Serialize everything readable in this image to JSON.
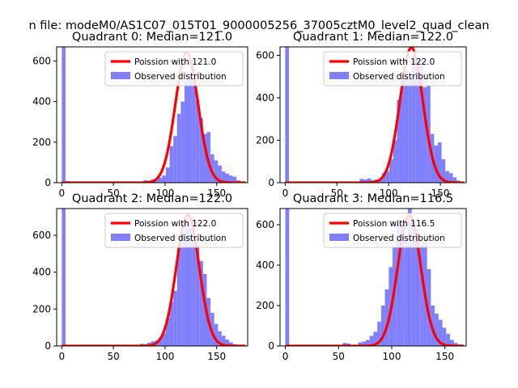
{
  "figure": {
    "suptitle": "n file: modeM0/AS1C07_015T01_9000005256_37005cztM0_level2_quad_clean"
  },
  "chart_data": [
    {
      "type": "histogram",
      "title": "Quadrant 0: Median=121.0",
      "xlim": [
        -5,
        180
      ],
      "ylim": [
        0,
        670
      ],
      "xticks": [
        0,
        50,
        100,
        150
      ],
      "yticks": [
        0,
        200,
        400,
        600
      ],
      "legend_position": "upper right",
      "series": [
        {
          "name": "Poission with 121.0",
          "kind": "line",
          "color": "#ff0000",
          "mean": 121.0,
          "peak": 641
        },
        {
          "name": "Observed distribution",
          "kind": "bar",
          "color": "#8080ff",
          "bin_width": 3.6,
          "bins": [
            0,
            3.6,
            79.2,
            82.8,
            86.4,
            90,
            93.6,
            97.2,
            100.8,
            104.4,
            108,
            111.6,
            115.2,
            118.8,
            122.4,
            126,
            129.6,
            133.2,
            136.8,
            140.4,
            144,
            147.6,
            151.2,
            154.8,
            158.4,
            162,
            165.6,
            169.2,
            172.8
          ],
          "values": [
            700,
            8,
            12,
            10,
            14,
            20,
            25,
            35,
            75,
            180,
            230,
            340,
            400,
            490,
            530,
            560,
            410,
            320,
            240,
            250,
            140,
            110,
            85,
            55,
            45,
            35,
            30,
            12,
            5
          ]
        }
      ]
    },
    {
      "type": "histogram",
      "title": "Quadrant 1: Median=122.0",
      "xlim": [
        -5,
        175
      ],
      "ylim": [
        0,
        640
      ],
      "xticks": [
        0,
        50,
        100,
        150
      ],
      "yticks": [
        0,
        200,
        400,
        600
      ],
      "legend_position": "upper right",
      "series": [
        {
          "name": "Poission with 122.0",
          "kind": "line",
          "color": "#ff0000",
          "mean": 122.0,
          "peak": 637
        },
        {
          "name": "Observed distribution",
          "kind": "bar",
          "color": "#8080ff",
          "bin_width": 3.6,
          "bins": [
            0,
            3.6,
            72,
            75.6,
            79.2,
            82.8,
            86.4,
            90,
            93.6,
            97.2,
            100.8,
            104.4,
            108,
            111.6,
            115.2,
            118.8,
            122.4,
            126,
            129.6,
            133.2,
            136.8,
            140.4,
            144,
            147.6,
            151.2,
            154.8,
            158.4,
            162,
            165.6
          ],
          "values": [
            660,
            6,
            18,
            15,
            20,
            12,
            15,
            18,
            45,
            55,
            110,
            200,
            390,
            470,
            530,
            490,
            600,
            580,
            590,
            450,
            460,
            230,
            175,
            190,
            110,
            55,
            45,
            25,
            10
          ]
        }
      ]
    },
    {
      "type": "histogram",
      "title": "Quadrant 2: Median=122.0",
      "xlim": [
        -5,
        180
      ],
      "ylim": [
        0,
        745
      ],
      "xticks": [
        0,
        50,
        100,
        150
      ],
      "yticks": [
        0,
        200,
        400,
        600
      ],
      "legend_position": "upper right",
      "series": [
        {
          "name": "Poission with 122.0",
          "kind": "line",
          "color": "#ff0000",
          "mean": 122.0,
          "peak": 712
        },
        {
          "name": "Observed distribution",
          "kind": "bar",
          "color": "#8080ff",
          "bin_width": 3.6,
          "bins": [
            0,
            3.6,
            75.6,
            79.2,
            82.8,
            86.4,
            90,
            93.6,
            97.2,
            100.8,
            104.4,
            108,
            111.6,
            115.2,
            118.8,
            122.4,
            126,
            129.6,
            133.2,
            136.8,
            140.4,
            144,
            147.6,
            151.2,
            154.8,
            158.4,
            162,
            165.6,
            169.2
          ],
          "values": [
            760,
            6,
            12,
            10,
            18,
            25,
            30,
            45,
            70,
            150,
            240,
            300,
            530,
            620,
            690,
            640,
            700,
            550,
            460,
            390,
            260,
            180,
            120,
            80,
            55,
            35,
            20,
            10,
            5
          ]
        }
      ]
    },
    {
      "type": "histogram",
      "title": "Quadrant 3: Median=116.5",
      "xlim": [
        -5,
        170
      ],
      "ylim": [
        0,
        680
      ],
      "xticks": [
        0,
        50,
        100,
        150
      ],
      "yticks": [
        0,
        200,
        400,
        600
      ],
      "legend_position": "upper right",
      "series": [
        {
          "name": "Poission with 116.5",
          "kind": "line",
          "color": "#ff0000",
          "mean": 116.5,
          "peak": 650
        },
        {
          "name": "Observed distribution",
          "kind": "bar",
          "color": "#8080ff",
          "bin_width": 3.6,
          "bins": [
            0,
            3.6,
            54,
            57.6,
            68.4,
            72,
            75.6,
            79.2,
            82.8,
            86.4,
            90,
            93.6,
            97.2,
            100.8,
            104.4,
            108,
            111.6,
            115.2,
            118.8,
            122.4,
            126,
            129.6,
            133.2,
            136.8,
            140.4,
            144,
            147.6,
            151.2,
            154.8,
            158.4,
            162
          ],
          "values": [
            700,
            6,
            15,
            12,
            18,
            22,
            30,
            50,
            70,
            120,
            200,
            280,
            390,
            490,
            600,
            620,
            540,
            680,
            620,
            580,
            500,
            520,
            380,
            200,
            160,
            130,
            90,
            60,
            30,
            15,
            8
          ]
        }
      ]
    }
  ]
}
